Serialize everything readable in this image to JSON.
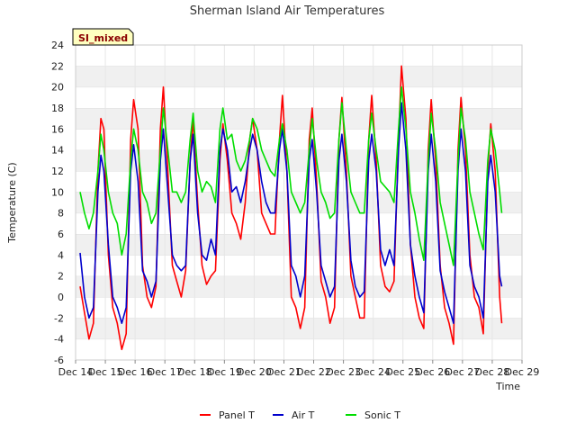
{
  "chart_data": {
    "type": "line",
    "title": "Sherman Island Air Temperatures",
    "xlabel": "Time",
    "ylabel": "Temperature (C)",
    "badge": "SI_mixed",
    "xlim": [
      14,
      29
    ],
    "ylim": [
      -6,
      24
    ],
    "x_tick_labels": [
      "Dec 14",
      "Dec 15",
      "Dec 16",
      "Dec 17",
      "Dec 18",
      "Dec 19",
      "Dec 20",
      "Dec 21",
      "Dec 22",
      "Dec 23",
      "Dec 24",
      "Dec 25",
      "Dec 26",
      "Dec 27",
      "Dec 28",
      "Dec 29"
    ],
    "y_ticks": [
      -6,
      -4,
      -2,
      0,
      2,
      4,
      6,
      8,
      10,
      12,
      14,
      16,
      18,
      20,
      22,
      24
    ],
    "legend_position": "bottom-center",
    "grid": true,
    "series": [
      {
        "name": "Panel T",
        "color": "#ff0000",
        "points": [
          [
            14.15,
            1.0
          ],
          [
            14.3,
            -1.5
          ],
          [
            14.45,
            -4.0
          ],
          [
            14.6,
            -2.5
          ],
          [
            14.75,
            12.0
          ],
          [
            14.85,
            17.0
          ],
          [
            14.95,
            16.0
          ],
          [
            15.1,
            4.0
          ],
          [
            15.25,
            -1.0
          ],
          [
            15.4,
            -2.5
          ],
          [
            15.55,
            -5.0
          ],
          [
            15.7,
            -3.5
          ],
          [
            15.85,
            15.0
          ],
          [
            15.95,
            18.8
          ],
          [
            16.1,
            16.0
          ],
          [
            16.25,
            3.0
          ],
          [
            16.4,
            0.0
          ],
          [
            16.55,
            -1.0
          ],
          [
            16.7,
            1.0
          ],
          [
            16.85,
            16.0
          ],
          [
            16.95,
            20.0
          ],
          [
            17.1,
            12.0
          ],
          [
            17.25,
            3.0
          ],
          [
            17.4,
            1.5
          ],
          [
            17.55,
            0.0
          ],
          [
            17.7,
            2.5
          ],
          [
            17.85,
            13.0
          ],
          [
            17.95,
            17.0
          ],
          [
            18.1,
            9.0
          ],
          [
            18.25,
            3.0
          ],
          [
            18.4,
            1.2
          ],
          [
            18.55,
            2.0
          ],
          [
            18.7,
            2.5
          ],
          [
            18.85,
            13.0
          ],
          [
            18.95,
            16.5
          ],
          [
            19.1,
            13.0
          ],
          [
            19.25,
            8.0
          ],
          [
            19.4,
            7.0
          ],
          [
            19.55,
            5.5
          ],
          [
            19.7,
            9.0
          ],
          [
            19.85,
            15.0
          ],
          [
            19.95,
            17.0
          ],
          [
            20.1,
            14.0
          ],
          [
            20.25,
            8.0
          ],
          [
            20.4,
            7.0
          ],
          [
            20.55,
            6.0
          ],
          [
            20.7,
            6.0
          ],
          [
            20.85,
            15.0
          ],
          [
            20.95,
            19.2
          ],
          [
            21.1,
            12.0
          ],
          [
            21.25,
            0.0
          ],
          [
            21.4,
            -1.0
          ],
          [
            21.55,
            -3.0
          ],
          [
            21.7,
            -1.0
          ],
          [
            21.85,
            15.0
          ],
          [
            21.95,
            18.0
          ],
          [
            22.1,
            11.0
          ],
          [
            22.25,
            1.5
          ],
          [
            22.4,
            0.0
          ],
          [
            22.55,
            -2.5
          ],
          [
            22.7,
            -1.0
          ],
          [
            22.85,
            15.0
          ],
          [
            22.95,
            19.0
          ],
          [
            23.1,
            12.0
          ],
          [
            23.25,
            2.0
          ],
          [
            23.4,
            0.0
          ],
          [
            23.55,
            -2.0
          ],
          [
            23.7,
            -2.0
          ],
          [
            23.85,
            15.0
          ],
          [
            23.95,
            19.2
          ],
          [
            24.1,
            13.0
          ],
          [
            24.25,
            3.0
          ],
          [
            24.4,
            1.0
          ],
          [
            24.55,
            0.5
          ],
          [
            24.7,
            1.5
          ],
          [
            24.85,
            15.0
          ],
          [
            24.95,
            22.0
          ],
          [
            25.1,
            17.0
          ],
          [
            25.25,
            5.0
          ],
          [
            25.4,
            0.0
          ],
          [
            25.55,
            -2.0
          ],
          [
            25.7,
            -3.0
          ],
          [
            25.85,
            14.0
          ],
          [
            25.95,
            18.8
          ],
          [
            26.1,
            13.0
          ],
          [
            26.25,
            3.0
          ],
          [
            26.4,
            -1.0
          ],
          [
            26.55,
            -2.5
          ],
          [
            26.7,
            -4.5
          ],
          [
            26.85,
            14.0
          ],
          [
            26.95,
            19.0
          ],
          [
            27.1,
            14.0
          ],
          [
            27.25,
            4.0
          ],
          [
            27.4,
            0.0
          ],
          [
            27.55,
            -1.0
          ],
          [
            27.7,
            -3.5
          ],
          [
            27.85,
            12.0
          ],
          [
            27.95,
            16.5
          ],
          [
            28.1,
            12.0
          ],
          [
            28.25,
            0.0
          ],
          [
            28.32,
            -2.5
          ]
        ]
      },
      {
        "name": "Air T",
        "color": "#0000cc",
        "points": [
          [
            14.15,
            4.2
          ],
          [
            14.3,
            0.0
          ],
          [
            14.45,
            -2.0
          ],
          [
            14.6,
            -1.0
          ],
          [
            14.75,
            10.0
          ],
          [
            14.85,
            13.5
          ],
          [
            14.95,
            12.0
          ],
          [
            15.1,
            5.0
          ],
          [
            15.25,
            0.0
          ],
          [
            15.4,
            -1.0
          ],
          [
            15.55,
            -2.5
          ],
          [
            15.7,
            -1.0
          ],
          [
            15.85,
            12.0
          ],
          [
            15.95,
            14.5
          ],
          [
            16.1,
            11.0
          ],
          [
            16.25,
            2.5
          ],
          [
            16.4,
            1.5
          ],
          [
            16.55,
            0.0
          ],
          [
            16.7,
            1.5
          ],
          [
            16.85,
            13.0
          ],
          [
            16.95,
            16.0
          ],
          [
            17.1,
            10.0
          ],
          [
            17.25,
            4.0
          ],
          [
            17.4,
            3.0
          ],
          [
            17.55,
            2.5
          ],
          [
            17.7,
            3.0
          ],
          [
            17.85,
            13.0
          ],
          [
            17.95,
            15.5
          ],
          [
            18.1,
            8.0
          ],
          [
            18.25,
            4.0
          ],
          [
            18.4,
            3.5
          ],
          [
            18.55,
            5.5
          ],
          [
            18.7,
            4.0
          ],
          [
            18.85,
            14.0
          ],
          [
            18.95,
            16.0
          ],
          [
            19.1,
            14.0
          ],
          [
            19.25,
            10.0
          ],
          [
            19.4,
            10.5
          ],
          [
            19.55,
            9.0
          ],
          [
            19.7,
            11.0
          ],
          [
            19.85,
            14.0
          ],
          [
            19.95,
            15.5
          ],
          [
            20.1,
            14.0
          ],
          [
            20.25,
            11.0
          ],
          [
            20.4,
            9.0
          ],
          [
            20.55,
            8.0
          ],
          [
            20.7,
            8.0
          ],
          [
            20.85,
            14.0
          ],
          [
            20.95,
            16.0
          ],
          [
            21.1,
            12.0
          ],
          [
            21.25,
            3.0
          ],
          [
            21.4,
            2.0
          ],
          [
            21.55,
            0.0
          ],
          [
            21.7,
            2.0
          ],
          [
            21.85,
            13.0
          ],
          [
            21.95,
            15.0
          ],
          [
            22.1,
            10.0
          ],
          [
            22.25,
            3.0
          ],
          [
            22.4,
            1.5
          ],
          [
            22.55,
            0.0
          ],
          [
            22.7,
            1.0
          ],
          [
            22.85,
            13.0
          ],
          [
            22.95,
            15.5
          ],
          [
            23.1,
            11.0
          ],
          [
            23.25,
            3.5
          ],
          [
            23.4,
            1.0
          ],
          [
            23.55,
            0.0
          ],
          [
            23.7,
            0.5
          ],
          [
            23.85,
            13.0
          ],
          [
            23.95,
            15.5
          ],
          [
            24.1,
            12.0
          ],
          [
            24.25,
            4.5
          ],
          [
            24.4,
            3.0
          ],
          [
            24.55,
            4.5
          ],
          [
            24.7,
            3.0
          ],
          [
            24.85,
            14.0
          ],
          [
            24.95,
            18.5
          ],
          [
            25.1,
            14.0
          ],
          [
            25.25,
            5.0
          ],
          [
            25.4,
            2.0
          ],
          [
            25.55,
            0.0
          ],
          [
            25.7,
            -1.5
          ],
          [
            25.85,
            12.0
          ],
          [
            25.95,
            15.5
          ],
          [
            26.1,
            11.0
          ],
          [
            26.25,
            2.5
          ],
          [
            26.4,
            0.5
          ],
          [
            26.55,
            -1.0
          ],
          [
            26.7,
            -2.5
          ],
          [
            26.85,
            12.0
          ],
          [
            26.95,
            16.0
          ],
          [
            27.1,
            12.0
          ],
          [
            27.25,
            3.0
          ],
          [
            27.4,
            1.0
          ],
          [
            27.55,
            0.0
          ],
          [
            27.7,
            -2.0
          ],
          [
            27.85,
            11.0
          ],
          [
            27.95,
            13.5
          ],
          [
            28.1,
            10.0
          ],
          [
            28.25,
            2.0
          ],
          [
            28.32,
            1.0
          ]
        ]
      },
      {
        "name": "Sonic T",
        "color": "#00dd00",
        "points": [
          [
            14.15,
            10.0
          ],
          [
            14.3,
            8.0
          ],
          [
            14.45,
            6.5
          ],
          [
            14.6,
            8.0
          ],
          [
            14.75,
            12.0
          ],
          [
            14.85,
            15.5
          ],
          [
            14.95,
            14.0
          ],
          [
            15.1,
            10.0
          ],
          [
            15.25,
            8.0
          ],
          [
            15.4,
            7.0
          ],
          [
            15.55,
            4.0
          ],
          [
            15.7,
            6.0
          ],
          [
            15.85,
            13.0
          ],
          [
            15.95,
            16.0
          ],
          [
            16.1,
            14.0
          ],
          [
            16.25,
            10.0
          ],
          [
            16.4,
            9.0
          ],
          [
            16.55,
            7.0
          ],
          [
            16.7,
            8.0
          ],
          [
            16.85,
            14.0
          ],
          [
            16.95,
            18.0
          ],
          [
            17.1,
            14.0
          ],
          [
            17.25,
            10.0
          ],
          [
            17.4,
            10.0
          ],
          [
            17.55,
            9.0
          ],
          [
            17.7,
            10.0
          ],
          [
            17.85,
            15.0
          ],
          [
            17.95,
            17.5
          ],
          [
            18.1,
            12.0
          ],
          [
            18.25,
            10.0
          ],
          [
            18.4,
            11.0
          ],
          [
            18.55,
            10.5
          ],
          [
            18.7,
            9.0
          ],
          [
            18.85,
            16.0
          ],
          [
            18.95,
            18.0
          ],
          [
            19.1,
            15.0
          ],
          [
            19.25,
            15.5
          ],
          [
            19.4,
            13.0
          ],
          [
            19.55,
            12.0
          ],
          [
            19.7,
            13.0
          ],
          [
            19.85,
            15.0
          ],
          [
            19.95,
            17.0
          ],
          [
            20.1,
            16.0
          ],
          [
            20.25,
            14.0
          ],
          [
            20.4,
            13.0
          ],
          [
            20.55,
            12.0
          ],
          [
            20.7,
            11.5
          ],
          [
            20.85,
            15.0
          ],
          [
            20.95,
            16.5
          ],
          [
            21.1,
            14.0
          ],
          [
            21.25,
            10.0
          ],
          [
            21.4,
            9.0
          ],
          [
            21.55,
            8.0
          ],
          [
            21.7,
            9.0
          ],
          [
            21.85,
            14.0
          ],
          [
            21.95,
            17.0
          ],
          [
            22.1,
            13.0
          ],
          [
            22.25,
            10.0
          ],
          [
            22.4,
            9.0
          ],
          [
            22.55,
            7.5
          ],
          [
            22.7,
            8.0
          ],
          [
            22.85,
            15.0
          ],
          [
            22.95,
            18.5
          ],
          [
            23.1,
            14.0
          ],
          [
            23.25,
            10.0
          ],
          [
            23.4,
            9.0
          ],
          [
            23.55,
            8.0
          ],
          [
            23.7,
            8.0
          ],
          [
            23.85,
            15.0
          ],
          [
            23.95,
            17.5
          ],
          [
            24.1,
            14.0
          ],
          [
            24.25,
            11.0
          ],
          [
            24.4,
            10.5
          ],
          [
            24.55,
            10.0
          ],
          [
            24.7,
            9.0
          ],
          [
            24.85,
            16.0
          ],
          [
            24.95,
            20.0
          ],
          [
            25.1,
            16.0
          ],
          [
            25.25,
            10.0
          ],
          [
            25.4,
            8.0
          ],
          [
            25.55,
            5.5
          ],
          [
            25.7,
            3.5
          ],
          [
            25.85,
            13.0
          ],
          [
            25.95,
            17.5
          ],
          [
            26.1,
            14.0
          ],
          [
            26.25,
            9.0
          ],
          [
            26.4,
            7.0
          ],
          [
            26.55,
            5.0
          ],
          [
            26.7,
            3.0
          ],
          [
            26.85,
            13.0
          ],
          [
            26.95,
            18.0
          ],
          [
            27.1,
            15.0
          ],
          [
            27.25,
            10.0
          ],
          [
            27.4,
            8.0
          ],
          [
            27.55,
            6.0
          ],
          [
            27.7,
            4.5
          ],
          [
            27.85,
            13.0
          ],
          [
            27.95,
            16.0
          ],
          [
            28.1,
            14.0
          ],
          [
            28.25,
            10.0
          ],
          [
            28.32,
            8.0
          ]
        ]
      }
    ]
  }
}
